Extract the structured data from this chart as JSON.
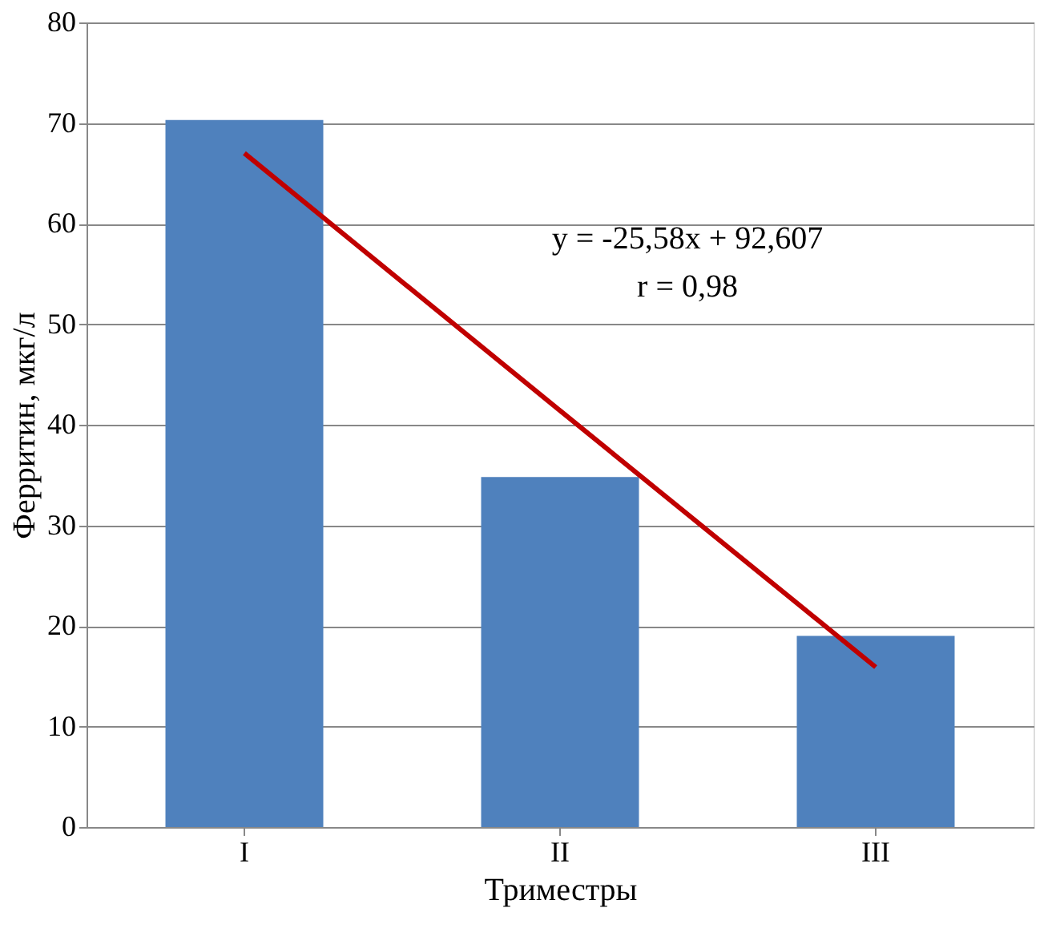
{
  "chart_data": {
    "type": "bar",
    "xlabel": "Триместры",
    "ylabel": "Ферритин, мкг/л",
    "categories": [
      "I",
      "II",
      "III"
    ],
    "series": [
      {
        "color": "#4f81bd",
        "values": [
          70.3,
          34.8,
          19.0
        ]
      },
      {
        "type": "line",
        "color": "#c00000",
        "values": [
          67.0,
          41.4,
          15.9
        ]
      }
    ],
    "ylim": [
      0,
      80
    ],
    "yticks": [
      0,
      10,
      20,
      30,
      40,
      50,
      60,
      70,
      80
    ],
    "grid": "y",
    "annotations": [
      "y = -25,58x + 92,607",
      "r = 0,98"
    ]
  }
}
